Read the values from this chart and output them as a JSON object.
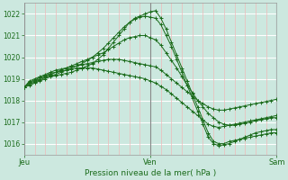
{
  "bg_color": "#cce8df",
  "grid_color_h": "#ffffff",
  "grid_color_v_minor": "#f0b8b8",
  "grid_color_v_major": "#888888",
  "line_color": "#1a6b1a",
  "xlabel": "Pression niveau de la mer( hPa )",
  "xlabel_color": "#1a6b1a",
  "tick_color": "#1a6b1a",
  "ylim": [
    1015.5,
    1022.5
  ],
  "yticks": [
    1016,
    1017,
    1018,
    1019,
    1020,
    1021,
    1022
  ],
  "xtick_labels": [
    "Jeu",
    "Ven",
    "Sam"
  ],
  "xtick_positions": [
    0,
    24,
    48
  ],
  "n_hours": 49,
  "series": [
    [
      1018.6,
      1018.7,
      1018.8,
      1018.9,
      1019.0,
      1019.1,
      1019.15,
      1019.2,
      1019.25,
      1019.3,
      1019.4,
      1019.5,
      1019.6,
      1019.7,
      1019.9,
      1020.1,
      1020.4,
      1020.7,
      1021.0,
      1021.3,
      1021.6,
      1021.8,
      1021.9,
      1022.0,
      1022.1,
      1022.15,
      1021.8,
      1021.3,
      1020.7,
      1020.1,
      1019.5,
      1018.9,
      1018.3,
      1017.7,
      1017.1,
      1016.5,
      1016.1,
      1016.0,
      1016.0,
      1016.1,
      1016.15,
      1016.2,
      1016.25,
      1016.3,
      1016.35,
      1016.4,
      1016.45,
      1016.5,
      1016.5
    ],
    [
      1018.6,
      1018.75,
      1018.85,
      1018.95,
      1019.05,
      1019.15,
      1019.2,
      1019.3,
      1019.4,
      1019.5,
      1019.6,
      1019.7,
      1019.85,
      1020.0,
      1020.2,
      1020.4,
      1020.65,
      1020.9,
      1021.15,
      1021.4,
      1021.6,
      1021.75,
      1021.85,
      1021.9,
      1021.85,
      1021.8,
      1021.5,
      1021.0,
      1020.5,
      1019.9,
      1019.3,
      1018.7,
      1018.1,
      1017.5,
      1016.9,
      1016.3,
      1016.0,
      1015.9,
      1015.95,
      1016.0,
      1016.1,
      1016.2,
      1016.3,
      1016.4,
      1016.5,
      1016.55,
      1016.6,
      1016.65,
      1016.65
    ],
    [
      1018.6,
      1018.8,
      1018.9,
      1019.0,
      1019.1,
      1019.2,
      1019.3,
      1019.4,
      1019.5,
      1019.6,
      1019.7,
      1019.8,
      1019.9,
      1020.0,
      1020.1,
      1020.2,
      1020.35,
      1020.5,
      1020.65,
      1020.8,
      1020.9,
      1020.95,
      1021.0,
      1021.0,
      1020.9,
      1020.8,
      1020.55,
      1020.2,
      1019.85,
      1019.5,
      1019.1,
      1018.7,
      1018.35,
      1018.0,
      1017.7,
      1017.4,
      1017.2,
      1017.0,
      1016.9,
      1016.85,
      1016.85,
      1016.9,
      1016.95,
      1017.0,
      1017.05,
      1017.1,
      1017.15,
      1017.2,
      1017.2
    ],
    [
      1018.6,
      1018.85,
      1018.95,
      1019.05,
      1019.15,
      1019.25,
      1019.3,
      1019.35,
      1019.4,
      1019.45,
      1019.5,
      1019.5,
      1019.5,
      1019.5,
      1019.45,
      1019.4,
      1019.35,
      1019.3,
      1019.25,
      1019.2,
      1019.15,
      1019.1,
      1019.05,
      1019.0,
      1018.9,
      1018.8,
      1018.65,
      1018.5,
      1018.3,
      1018.1,
      1017.9,
      1017.7,
      1017.5,
      1017.3,
      1017.1,
      1016.9,
      1016.8,
      1016.75,
      1016.8,
      1016.85,
      1016.9,
      1016.95,
      1017.0,
      1017.05,
      1017.1,
      1017.15,
      1017.2,
      1017.25,
      1017.3
    ],
    [
      1018.6,
      1018.9,
      1019.0,
      1019.1,
      1019.2,
      1019.3,
      1019.4,
      1019.45,
      1019.5,
      1019.55,
      1019.6,
      1019.65,
      1019.7,
      1019.75,
      1019.8,
      1019.85,
      1019.9,
      1019.9,
      1019.9,
      1019.85,
      1019.8,
      1019.75,
      1019.7,
      1019.65,
      1019.6,
      1019.55,
      1019.4,
      1019.2,
      1019.0,
      1018.8,
      1018.6,
      1018.4,
      1018.2,
      1018.0,
      1017.85,
      1017.7,
      1017.6,
      1017.55,
      1017.55,
      1017.6,
      1017.65,
      1017.7,
      1017.75,
      1017.8,
      1017.85,
      1017.9,
      1017.95,
      1018.0,
      1018.05
    ]
  ]
}
